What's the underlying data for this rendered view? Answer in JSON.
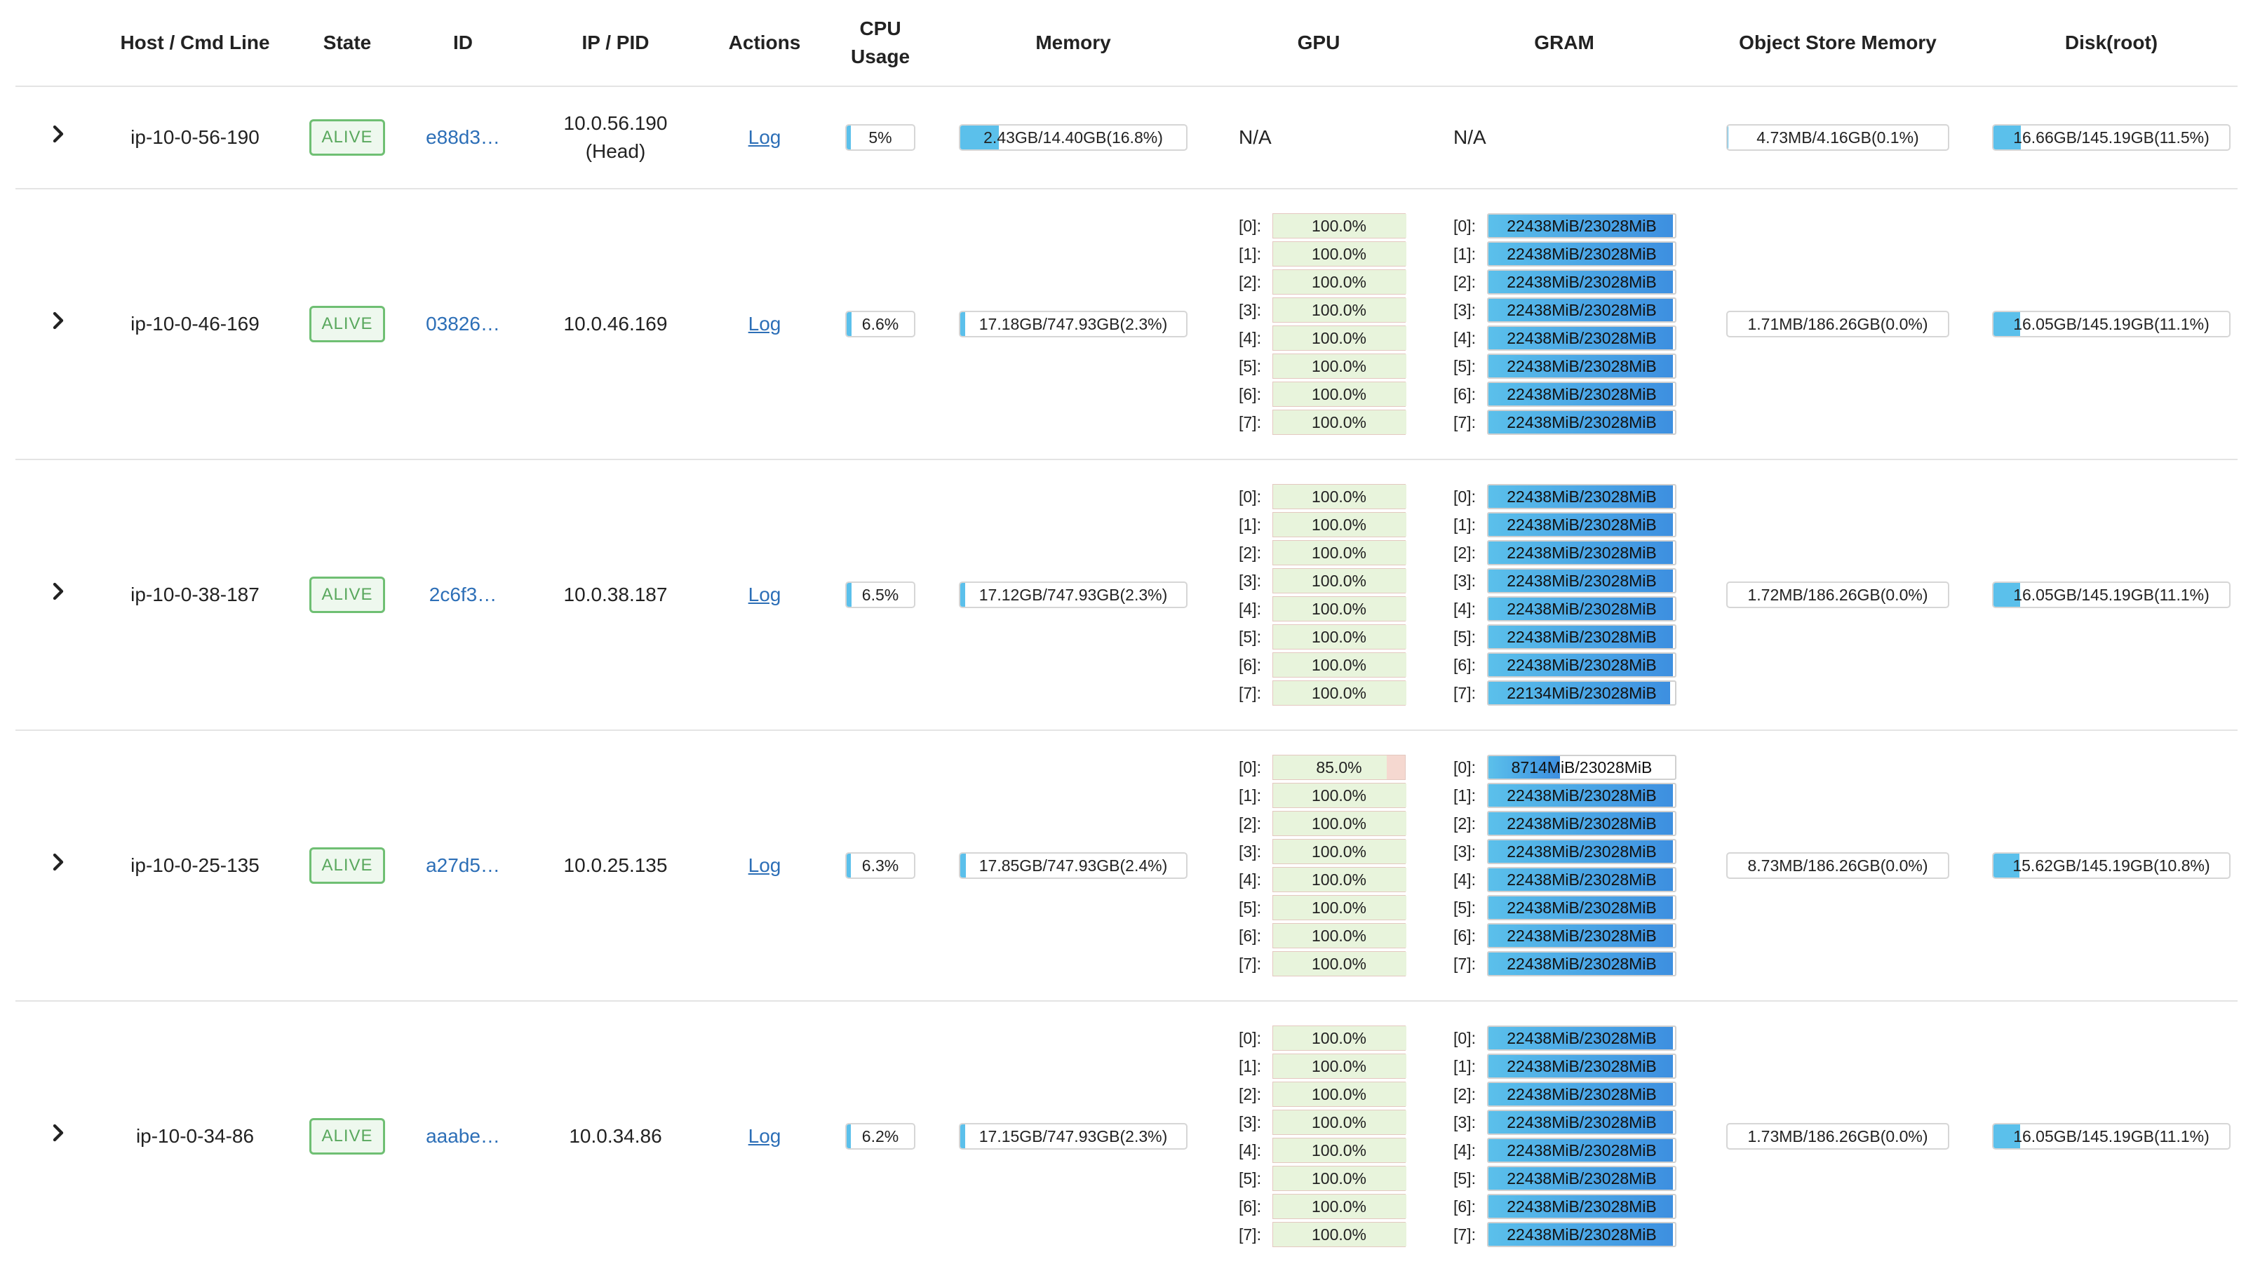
{
  "headers": {
    "host": "Host / Cmd Line",
    "state": "State",
    "id": "ID",
    "ip": "IP / PID",
    "actions": "Actions",
    "cpu": "CPU Usage",
    "memory": "Memory",
    "gpu": "GPU",
    "gram": "GRAM",
    "objstore": "Object Store Memory",
    "disk": "Disk(root)"
  },
  "colors": {
    "accent": "#5bc0eb",
    "alive": "#5aa85e",
    "link": "#2d6fb7",
    "gpu_bg": "#f5d8d0",
    "gpu_fill": "#e8f4dc"
  },
  "rows": [
    {
      "host": "ip-10-0-56-190",
      "state": "ALIVE",
      "id": "e88d3…",
      "ip": "10.0.56.190",
      "ip_note": "(Head)",
      "action": "Log",
      "cpu_label": "5%",
      "cpu_pct": 5,
      "mem_label": "2.43GB/14.40GB(16.8%)",
      "mem_pct": 16.8,
      "gpu_na": "N/A",
      "gram_na": "N/A",
      "gpus": [],
      "gram": [],
      "obj_label": "4.73MB/4.16GB(0.1%)",
      "obj_pct": 0.1,
      "disk_label": "16.66GB/145.19GB(11.5%)",
      "disk_pct": 11.5
    },
    {
      "host": "ip-10-0-46-169",
      "state": "ALIVE",
      "id": "03826…",
      "ip": "10.0.46.169",
      "ip_note": "",
      "action": "Log",
      "cpu_label": "6.6%",
      "cpu_pct": 6.6,
      "mem_label": "17.18GB/747.93GB(2.3%)",
      "mem_pct": 2.3,
      "gpus": [
        {
          "idx": "[0]:",
          "label": "100.0%",
          "pct": 100
        },
        {
          "idx": "[1]:",
          "label": "100.0%",
          "pct": 100
        },
        {
          "idx": "[2]:",
          "label": "100.0%",
          "pct": 100
        },
        {
          "idx": "[3]:",
          "label": "100.0%",
          "pct": 100
        },
        {
          "idx": "[4]:",
          "label": "100.0%",
          "pct": 100
        },
        {
          "idx": "[5]:",
          "label": "100.0%",
          "pct": 100
        },
        {
          "idx": "[6]:",
          "label": "100.0%",
          "pct": 100
        },
        {
          "idx": "[7]:",
          "label": "100.0%",
          "pct": 100
        }
      ],
      "gram": [
        {
          "idx": "[0]:",
          "label": "22438MiB/23028MiB",
          "pct": 97.4
        },
        {
          "idx": "[1]:",
          "label": "22438MiB/23028MiB",
          "pct": 97.4
        },
        {
          "idx": "[2]:",
          "label": "22438MiB/23028MiB",
          "pct": 97.4
        },
        {
          "idx": "[3]:",
          "label": "22438MiB/23028MiB",
          "pct": 97.4
        },
        {
          "idx": "[4]:",
          "label": "22438MiB/23028MiB",
          "pct": 97.4
        },
        {
          "idx": "[5]:",
          "label": "22438MiB/23028MiB",
          "pct": 97.4
        },
        {
          "idx": "[6]:",
          "label": "22438MiB/23028MiB",
          "pct": 97.4
        },
        {
          "idx": "[7]:",
          "label": "22438MiB/23028MiB",
          "pct": 97.4
        }
      ],
      "obj_label": "1.71MB/186.26GB(0.0%)",
      "obj_pct": 0,
      "disk_label": "16.05GB/145.19GB(11.1%)",
      "disk_pct": 11.1
    },
    {
      "host": "ip-10-0-38-187",
      "state": "ALIVE",
      "id": "2c6f3…",
      "ip": "10.0.38.187",
      "ip_note": "",
      "action": "Log",
      "cpu_label": "6.5%",
      "cpu_pct": 6.5,
      "mem_label": "17.12GB/747.93GB(2.3%)",
      "mem_pct": 2.3,
      "gpus": [
        {
          "idx": "[0]:",
          "label": "100.0%",
          "pct": 100
        },
        {
          "idx": "[1]:",
          "label": "100.0%",
          "pct": 100
        },
        {
          "idx": "[2]:",
          "label": "100.0%",
          "pct": 100
        },
        {
          "idx": "[3]:",
          "label": "100.0%",
          "pct": 100
        },
        {
          "idx": "[4]:",
          "label": "100.0%",
          "pct": 100
        },
        {
          "idx": "[5]:",
          "label": "100.0%",
          "pct": 100
        },
        {
          "idx": "[6]:",
          "label": "100.0%",
          "pct": 100
        },
        {
          "idx": "[7]:",
          "label": "100.0%",
          "pct": 100
        }
      ],
      "gram": [
        {
          "idx": "[0]:",
          "label": "22438MiB/23028MiB",
          "pct": 97.4
        },
        {
          "idx": "[1]:",
          "label": "22438MiB/23028MiB",
          "pct": 97.4
        },
        {
          "idx": "[2]:",
          "label": "22438MiB/23028MiB",
          "pct": 97.4
        },
        {
          "idx": "[3]:",
          "label": "22438MiB/23028MiB",
          "pct": 97.4
        },
        {
          "idx": "[4]:",
          "label": "22438MiB/23028MiB",
          "pct": 97.4
        },
        {
          "idx": "[5]:",
          "label": "22438MiB/23028MiB",
          "pct": 97.4
        },
        {
          "idx": "[6]:",
          "label": "22438MiB/23028MiB",
          "pct": 97.4
        },
        {
          "idx": "[7]:",
          "label": "22134MiB/23028MiB",
          "pct": 96.1
        }
      ],
      "obj_label": "1.72MB/186.26GB(0.0%)",
      "obj_pct": 0,
      "disk_label": "16.05GB/145.19GB(11.1%)",
      "disk_pct": 11.1
    },
    {
      "host": "ip-10-0-25-135",
      "state": "ALIVE",
      "id": "a27d5…",
      "ip": "10.0.25.135",
      "ip_note": "",
      "action": "Log",
      "cpu_label": "6.3%",
      "cpu_pct": 6.3,
      "mem_label": "17.85GB/747.93GB(2.4%)",
      "mem_pct": 2.4,
      "gpus": [
        {
          "idx": "[0]:",
          "label": "85.0%",
          "pct": 85
        },
        {
          "idx": "[1]:",
          "label": "100.0%",
          "pct": 100
        },
        {
          "idx": "[2]:",
          "label": "100.0%",
          "pct": 100
        },
        {
          "idx": "[3]:",
          "label": "100.0%",
          "pct": 100
        },
        {
          "idx": "[4]:",
          "label": "100.0%",
          "pct": 100
        },
        {
          "idx": "[5]:",
          "label": "100.0%",
          "pct": 100
        },
        {
          "idx": "[6]:",
          "label": "100.0%",
          "pct": 100
        },
        {
          "idx": "[7]:",
          "label": "100.0%",
          "pct": 100
        }
      ],
      "gram": [
        {
          "idx": "[0]:",
          "label": "8714MiB/23028MiB",
          "pct": 37.8
        },
        {
          "idx": "[1]:",
          "label": "22438MiB/23028MiB",
          "pct": 97.4
        },
        {
          "idx": "[2]:",
          "label": "22438MiB/23028MiB",
          "pct": 97.4
        },
        {
          "idx": "[3]:",
          "label": "22438MiB/23028MiB",
          "pct": 97.4
        },
        {
          "idx": "[4]:",
          "label": "22438MiB/23028MiB",
          "pct": 97.4
        },
        {
          "idx": "[5]:",
          "label": "22438MiB/23028MiB",
          "pct": 97.4
        },
        {
          "idx": "[6]:",
          "label": "22438MiB/23028MiB",
          "pct": 97.4
        },
        {
          "idx": "[7]:",
          "label": "22438MiB/23028MiB",
          "pct": 97.4
        }
      ],
      "obj_label": "8.73MB/186.26GB(0.0%)",
      "obj_pct": 0,
      "disk_label": "15.62GB/145.19GB(10.8%)",
      "disk_pct": 10.8
    },
    {
      "host": "ip-10-0-34-86",
      "state": "ALIVE",
      "id": "aaabe…",
      "ip": "10.0.34.86",
      "ip_note": "",
      "action": "Log",
      "cpu_label": "6.2%",
      "cpu_pct": 6.2,
      "mem_label": "17.15GB/747.93GB(2.3%)",
      "mem_pct": 2.3,
      "gpus": [
        {
          "idx": "[0]:",
          "label": "100.0%",
          "pct": 100
        },
        {
          "idx": "[1]:",
          "label": "100.0%",
          "pct": 100
        },
        {
          "idx": "[2]:",
          "label": "100.0%",
          "pct": 100
        },
        {
          "idx": "[3]:",
          "label": "100.0%",
          "pct": 100
        },
        {
          "idx": "[4]:",
          "label": "100.0%",
          "pct": 100
        },
        {
          "idx": "[5]:",
          "label": "100.0%",
          "pct": 100
        },
        {
          "idx": "[6]:",
          "label": "100.0%",
          "pct": 100
        },
        {
          "idx": "[7]:",
          "label": "100.0%",
          "pct": 100
        }
      ],
      "gram": [
        {
          "idx": "[0]:",
          "label": "22438MiB/23028MiB",
          "pct": 97.4
        },
        {
          "idx": "[1]:",
          "label": "22438MiB/23028MiB",
          "pct": 97.4
        },
        {
          "idx": "[2]:",
          "label": "22438MiB/23028MiB",
          "pct": 97.4
        },
        {
          "idx": "[3]:",
          "label": "22438MiB/23028MiB",
          "pct": 97.4
        },
        {
          "idx": "[4]:",
          "label": "22438MiB/23028MiB",
          "pct": 97.4
        },
        {
          "idx": "[5]:",
          "label": "22438MiB/23028MiB",
          "pct": 97.4
        },
        {
          "idx": "[6]:",
          "label": "22438MiB/23028MiB",
          "pct": 97.4
        },
        {
          "idx": "[7]:",
          "label": "22438MiB/23028MiB",
          "pct": 97.4
        }
      ],
      "obj_label": "1.73MB/186.26GB(0.0%)",
      "obj_pct": 0,
      "disk_label": "16.05GB/145.19GB(11.1%)",
      "disk_pct": 11.1
    }
  ]
}
